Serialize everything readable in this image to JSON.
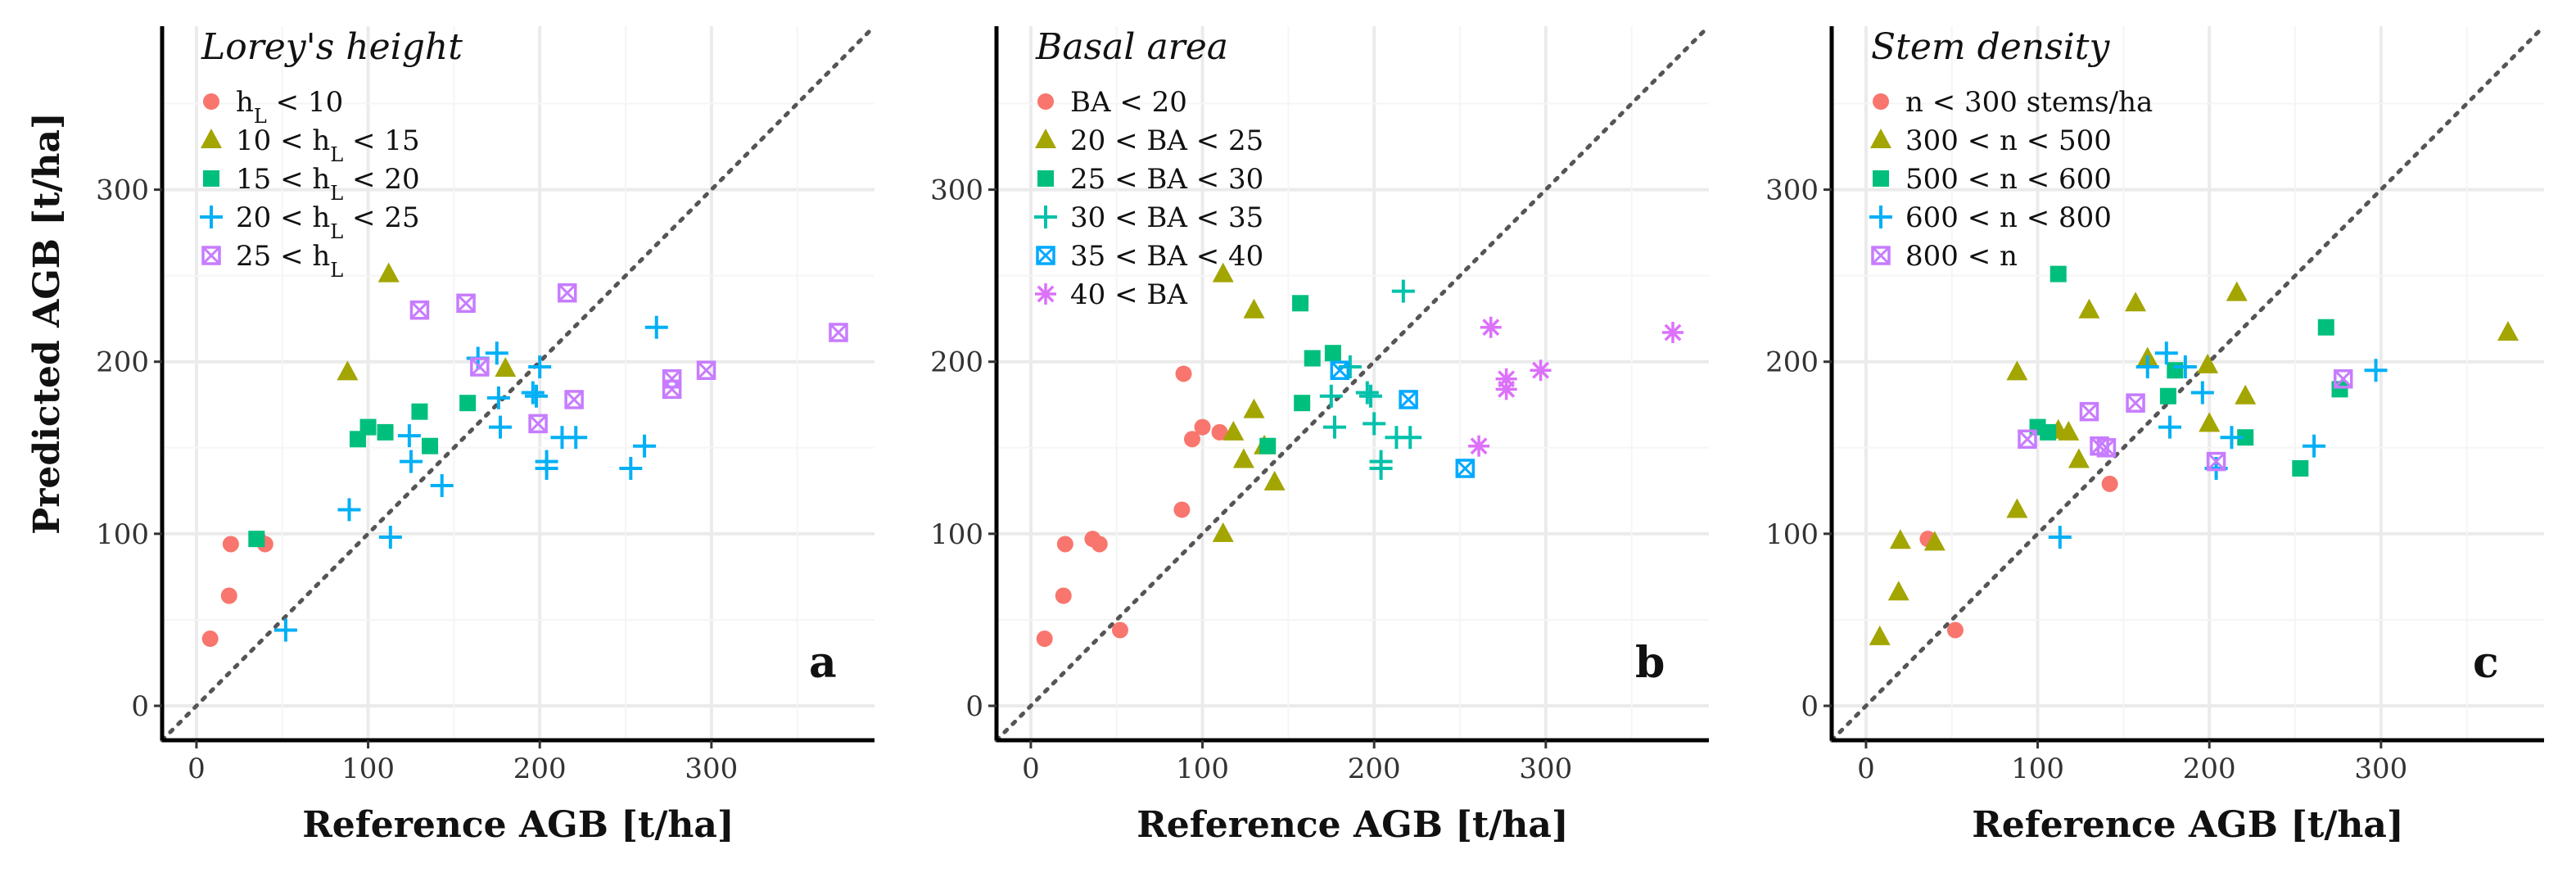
{
  "y_axis_label": "Predicted AGB [t/ha]",
  "colors": {
    "red": "#F8766D",
    "olive": "#A3A500",
    "green": "#00BF7D",
    "cyan": "#00B0F6",
    "purple": "#E76BF3",
    "dotted_line": "#555555",
    "grid": "#EBEBEB"
  },
  "chart_data": [
    {
      "type": "scatter",
      "title": "Lorey's height",
      "panel_letter": "a",
      "xlabel": "Reference AGB [t/ha]",
      "ylabel": "Predicted AGB [t/ha]",
      "xlim": [
        -20,
        395
      ],
      "ylim": [
        -20,
        395
      ],
      "xticks": [
        0,
        100,
        200,
        300
      ],
      "yticks": [
        0,
        100,
        200,
        300
      ],
      "reference_line": "1:1 dotted",
      "series": [
        {
          "name": "hL < 10",
          "marker": "circle",
          "color": "#F8766D",
          "points": [
            [
              8,
              39
            ],
            [
              19,
              64
            ],
            [
              20,
              94
            ],
            [
              40,
              94
            ],
            [
              36,
              97
            ]
          ]
        },
        {
          "name": "10 < hL < 15",
          "marker": "triangle",
          "color": "#A3A500",
          "points": [
            [
              88,
              194
            ],
            [
              112,
              251
            ],
            [
              180,
              196
            ]
          ]
        },
        {
          "name": "15 < hL < 20",
          "marker": "square",
          "color": "#00BF7D",
          "points": [
            [
              35,
              97
            ],
            [
              94,
              155
            ],
            [
              100,
              162
            ],
            [
              110,
              159
            ],
            [
              130,
              171
            ],
            [
              136,
              151
            ],
            [
              158,
              176
            ]
          ]
        },
        {
          "name": "20 < hL < 25",
          "marker": "plus",
          "color": "#00B0F6",
          "points": [
            [
              52,
              44
            ],
            [
              89,
              114
            ],
            [
              113,
              98
            ],
            [
              124,
              157
            ],
            [
              125,
              142
            ],
            [
              143,
              128
            ],
            [
              164,
              202
            ],
            [
              175,
              205
            ],
            [
              176,
              179
            ],
            [
              177,
              162
            ],
            [
              196,
              182
            ],
            [
              198,
              180
            ],
            [
              200,
              197
            ],
            [
              204,
              138
            ],
            [
              204,
              142
            ],
            [
              213,
              156
            ],
            [
              221,
              156
            ],
            [
              253,
              138
            ],
            [
              261,
              151
            ],
            [
              268,
              220
            ]
          ]
        },
        {
          "name": "25 < hL",
          "marker": "boxx",
          "color": "#C77CFF",
          "points": [
            [
              130,
              230
            ],
            [
              157,
              234
            ],
            [
              165,
              197
            ],
            [
              199,
              164
            ],
            [
              216,
              240
            ],
            [
              220,
              178
            ],
            [
              277,
              184
            ],
            [
              277,
              190
            ],
            [
              297,
              195
            ],
            [
              374,
              217
            ]
          ]
        }
      ]
    },
    {
      "type": "scatter",
      "title": "Basal area",
      "panel_letter": "b",
      "xlabel": "Reference AGB [t/ha]",
      "ylabel": "",
      "xlim": [
        -20,
        395
      ],
      "ylim": [
        -20,
        395
      ],
      "xticks": [
        0,
        100,
        200,
        300
      ],
      "yticks": [
        0,
        100,
        200,
        300
      ],
      "reference_line": "1:1 dotted",
      "series": [
        {
          "name": "BA < 20",
          "marker": "circle",
          "color": "#F8766D",
          "points": [
            [
              8,
              39
            ],
            [
              19,
              64
            ],
            [
              20,
              94
            ],
            [
              36,
              97
            ],
            [
              40,
              94
            ],
            [
              52,
              44
            ],
            [
              88,
              114
            ],
            [
              89,
              193
            ],
            [
              94,
              155
            ],
            [
              100,
              162
            ],
            [
              110,
              159
            ]
          ]
        },
        {
          "name": "20 < BA < 25",
          "marker": "triangle",
          "color": "#A3A500",
          "points": [
            [
              112,
              100
            ],
            [
              112,
              251
            ],
            [
              118,
              159
            ],
            [
              124,
              143
            ],
            [
              130,
              230
            ],
            [
              130,
              172
            ],
            [
              136,
              151
            ],
            [
              142,
              130
            ]
          ]
        },
        {
          "name": "25 < BA < 30",
          "marker": "square",
          "color": "#00BF7D",
          "points": [
            [
              138,
              151
            ],
            [
              157,
              234
            ],
            [
              158,
              176
            ],
            [
              164,
              202
            ],
            [
              176,
              205
            ]
          ]
        },
        {
          "name": "30 < BA < 35",
          "marker": "plus",
          "color": "#00C1AA",
          "points": [
            [
              175,
              180
            ],
            [
              177,
              162
            ],
            [
              186,
              197
            ],
            [
              196,
              182
            ],
            [
              198,
              180
            ],
            [
              200,
              164
            ],
            [
              204,
              138
            ],
            [
              204,
              142
            ],
            [
              213,
              156
            ],
            [
              217,
              241
            ],
            [
              221,
              156
            ]
          ]
        },
        {
          "name": "35 < BA < 40",
          "marker": "boxx",
          "color": "#00A9FF",
          "points": [
            [
              180,
              195
            ],
            [
              220,
              178
            ],
            [
              253,
              138
            ]
          ]
        },
        {
          "name": "40 < BA",
          "marker": "asterisk",
          "color": "#DC71FA",
          "points": [
            [
              261,
              151
            ],
            [
              268,
              220
            ],
            [
              277,
              184
            ],
            [
              277,
              190
            ],
            [
              297,
              195
            ],
            [
              374,
              217
            ]
          ]
        }
      ]
    },
    {
      "type": "scatter",
      "title": "Stem density",
      "panel_letter": "c",
      "xlabel": "Reference AGB [t/ha]",
      "ylabel": "",
      "xlim": [
        -20,
        395
      ],
      "ylim": [
        -20,
        395
      ],
      "xticks": [
        0,
        100,
        200,
        300
      ],
      "yticks": [
        0,
        100,
        200,
        300
      ],
      "reference_line": "1:1 dotted",
      "series": [
        {
          "name": "n < 300 stems/ha",
          "marker": "circle",
          "color": "#F8766D",
          "points": [
            [
              36,
              97
            ],
            [
              52,
              44
            ],
            [
              142,
              129
            ]
          ]
        },
        {
          "name": "300 < n < 500",
          "marker": "triangle",
          "color": "#A3A500",
          "points": [
            [
              8,
              40
            ],
            [
              19,
              66
            ],
            [
              20,
              96
            ],
            [
              40,
              95
            ],
            [
              88,
              114
            ],
            [
              88,
              194
            ],
            [
              112,
              160
            ],
            [
              118,
              159
            ],
            [
              124,
              143
            ],
            [
              130,
              230
            ],
            [
              157,
              234
            ],
            [
              164,
              202
            ],
            [
              199,
              198
            ],
            [
              200,
              164
            ],
            [
              216,
              240
            ],
            [
              221,
              180
            ],
            [
              374,
              217
            ]
          ]
        },
        {
          "name": "500 < n < 600",
          "marker": "square",
          "color": "#00BF7D",
          "points": [
            [
              100,
              162
            ],
            [
              106,
              159
            ],
            [
              112,
              251
            ],
            [
              176,
              180
            ],
            [
              180,
              195
            ],
            [
              221,
              156
            ],
            [
              253,
              138
            ],
            [
              268,
              220
            ],
            [
              276,
              184
            ]
          ]
        },
        {
          "name": "600 < n < 800",
          "marker": "plus",
          "color": "#00B0F6",
          "points": [
            [
              113,
              98
            ],
            [
              164,
              197
            ],
            [
              175,
              205
            ],
            [
              177,
              162
            ],
            [
              186,
              197
            ],
            [
              196,
              182
            ],
            [
              204,
              138
            ],
            [
              213,
              156
            ],
            [
              261,
              151
            ],
            [
              297,
              195
            ]
          ]
        },
        {
          "name": "800 < n",
          "marker": "boxx",
          "color": "#C77CFF",
          "points": [
            [
              94,
              155
            ],
            [
              130,
              171
            ],
            [
              136,
              151
            ],
            [
              140,
              150
            ],
            [
              157,
              176
            ],
            [
              204,
              142
            ],
            [
              278,
              190
            ]
          ]
        }
      ]
    }
  ]
}
